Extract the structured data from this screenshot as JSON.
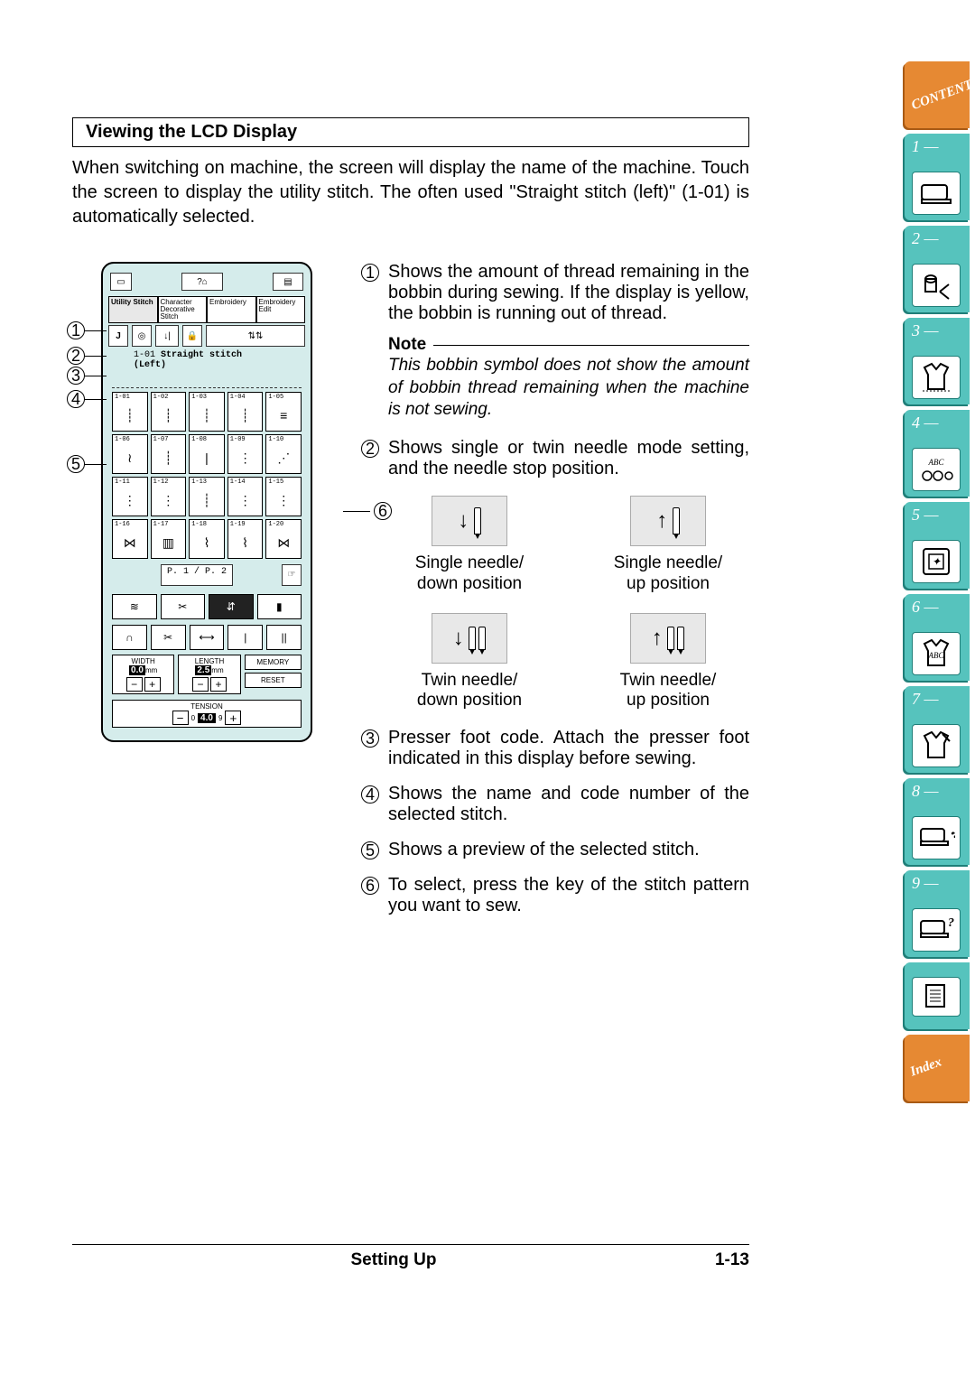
{
  "heading": "Viewing the LCD Display",
  "intro": "When switching on machine, the screen will display the name of the machine. Touch the screen to display the utility stitch. The often used \"Straight stitch (left)\"  (1-01) is automatically selected.",
  "lcd": {
    "tabs": [
      "Utility Stitch",
      "Character Decorative Stitch",
      "Embroidery",
      "Embroidery Edit"
    ],
    "stitch_code": "1-01",
    "stitch_name": "Straight stitch\n(Left)",
    "cells": [
      "1-01",
      "1-02",
      "1-03",
      "1-04",
      "1-05",
      "1-06",
      "1-07",
      "1-08",
      "1-09",
      "1-10",
      "1-11",
      "1-12",
      "1-13",
      "1-14",
      "1-15",
      "1-16",
      "1-17",
      "1-18",
      "1-19",
      "1-20"
    ],
    "page_current": "P. 1",
    "page_total": "P. 2",
    "width_label": "WIDTH",
    "width_value": "0.0",
    "width_unit": "mm",
    "length_label": "LENGTH",
    "length_value": "2.5",
    "length_unit": "mm",
    "memory_label": "MEMORY",
    "reset_label": "RESET",
    "tension_label": "TENSION",
    "tension_value": "4.0",
    "tension_min": "0",
    "tension_max": "9"
  },
  "items": {
    "i1": "Shows the amount of thread remaining in the bobbin during sewing. If the display is yellow, the bobbin is running out of thread.",
    "note_label": "Note",
    "note_body": "This bobbin symbol does not show the amount of bobbin thread remaining when the machine is not sewing.",
    "i2": "Shows single or twin needle mode setting, and the needle stop position.",
    "needle_labels": {
      "a": "Single needle/\ndown position",
      "b": "Single needle/\nup position",
      "c": "Twin needle/\ndown position",
      "d": "Twin needle/\nup position"
    },
    "i3": "Presser foot code. Attach the presser foot indicated in this display before sewing.",
    "i4": "Shows the name and code number of the selected stitch.",
    "i5": "Shows a preview of the selected stitch.",
    "i6": "To select, press the key of the stitch pattern you want to sew."
  },
  "footer": {
    "center": "Setting Up",
    "right": "1-13"
  },
  "sidetabs": {
    "contents": "CONTENTS",
    "index": "Index",
    "nums": [
      "1 —",
      "2 —",
      "3 —",
      "4 —",
      "5 —",
      "6 —",
      "7 —",
      "8 —",
      "9 —"
    ]
  },
  "colors": {
    "teal": "#56c3bd",
    "teal_dark": "#1f7e78",
    "orange": "#e68933",
    "lcd_bg": "#d5eceb"
  }
}
